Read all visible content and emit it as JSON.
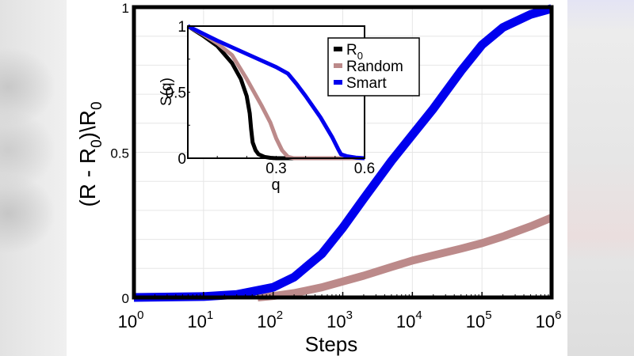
{
  "chart_data": [
    {
      "type": "line",
      "role": "main",
      "title": "",
      "xlabel": "Steps",
      "ylabel": "(R - R0)\\R0",
      "xscale": "log",
      "xlim": [
        1,
        1000000
      ],
      "ylim": [
        0,
        1
      ],
      "grid": true,
      "x_ticks": [
        "10^0",
        "10^1",
        "10^2",
        "10^3",
        "10^4",
        "10^5",
        "10^6"
      ],
      "y_ticks": [
        "0",
        "0.5",
        "1"
      ],
      "legend": "none",
      "series": [
        {
          "name": "Smart",
          "color": "#0000ee",
          "x": [
            1,
            10,
            30,
            100,
            200,
            500,
            1000,
            2000,
            5000,
            10000,
            20000,
            50000,
            100000,
            200000,
            500000,
            1000000
          ],
          "y": [
            0.0,
            0.003,
            0.01,
            0.035,
            0.07,
            0.15,
            0.24,
            0.34,
            0.47,
            0.56,
            0.65,
            0.78,
            0.87,
            0.93,
            0.975,
            0.995
          ]
        },
        {
          "name": "Random",
          "color": "#bc8a8a",
          "x": [
            60,
            100,
            200,
            500,
            1000,
            2000,
            5000,
            10000,
            20000,
            50000,
            100000,
            200000,
            500000,
            1000000
          ],
          "y": [
            0.0,
            0.005,
            0.015,
            0.035,
            0.055,
            0.075,
            0.105,
            0.127,
            0.145,
            0.168,
            0.187,
            0.21,
            0.245,
            0.275
          ]
        }
      ]
    },
    {
      "type": "line",
      "role": "inset",
      "title": "",
      "xlabel": "q",
      "ylabel": "S(q)",
      "xlim": [
        0,
        0.6
      ],
      "ylim": [
        0,
        1
      ],
      "grid": false,
      "x_ticks": [
        "0.3",
        "0.6"
      ],
      "y_ticks": [
        "0",
        "0.5",
        "1"
      ],
      "legend": "upper right",
      "series": [
        {
          "name": "R0",
          "color": "#000000",
          "x": [
            0,
            0.05,
            0.1,
            0.15,
            0.18,
            0.2,
            0.21,
            0.215,
            0.22,
            0.23,
            0.24,
            0.26,
            0.28,
            0.3,
            0.6
          ],
          "y": [
            1,
            0.93,
            0.85,
            0.72,
            0.6,
            0.47,
            0.34,
            0.22,
            0.12,
            0.06,
            0.03,
            0.01,
            0.003,
            0,
            0
          ]
        },
        {
          "name": "Random",
          "color": "#bc8a8a",
          "x": [
            0,
            0.05,
            0.1,
            0.15,
            0.2,
            0.25,
            0.28,
            0.3,
            0.32,
            0.34,
            0.36,
            0.6
          ],
          "y": [
            1,
            0.94,
            0.87,
            0.78,
            0.6,
            0.4,
            0.27,
            0.15,
            0.06,
            0.01,
            0,
            0
          ]
        },
        {
          "name": "Smart",
          "color": "#0000ee",
          "x": [
            0,
            0.1,
            0.2,
            0.3,
            0.34,
            0.37,
            0.4,
            0.45,
            0.49,
            0.51,
            0.52,
            0.54,
            0.57,
            0.6
          ],
          "y": [
            1,
            0.89,
            0.79,
            0.69,
            0.64,
            0.56,
            0.47,
            0.31,
            0.16,
            0.07,
            0.03,
            0.015,
            0.005,
            0
          ]
        }
      ]
    }
  ],
  "labels": {
    "main_xlabel": "Steps",
    "main_ylabel_prefix": "(R - R",
    "main_ylabel_sub": "0",
    "main_ylabel_mid": ")\\R",
    "main_ylabel_sub2": "0",
    "inset_xlabel": "q",
    "inset_ylabel": "S(q)",
    "legend": [
      {
        "label": "R",
        "sub": "0",
        "color": "#000000"
      },
      {
        "label": "Random",
        "sub": "",
        "color": "#bc8a8a"
      },
      {
        "label": "Smart",
        "sub": "",
        "color": "#0000ee"
      }
    ]
  }
}
